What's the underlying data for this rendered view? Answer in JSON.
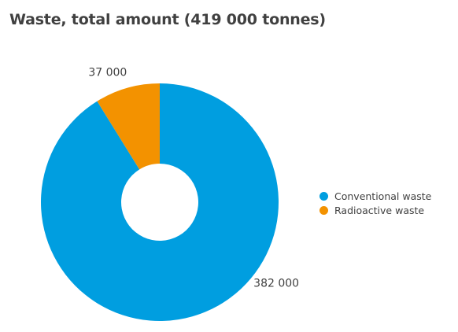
{
  "chart_data": {
    "type": "pie",
    "title": "Waste, total amount (419 000 tonnes)",
    "donut": true,
    "legend_position": "right",
    "series": [
      {
        "name": "Conventional waste",
        "value": 382000,
        "label": "382 000",
        "color": "#009EE0"
      },
      {
        "name": "Radioactive waste",
        "value": 37000,
        "label": "37 000",
        "color": "#F39200"
      }
    ]
  }
}
